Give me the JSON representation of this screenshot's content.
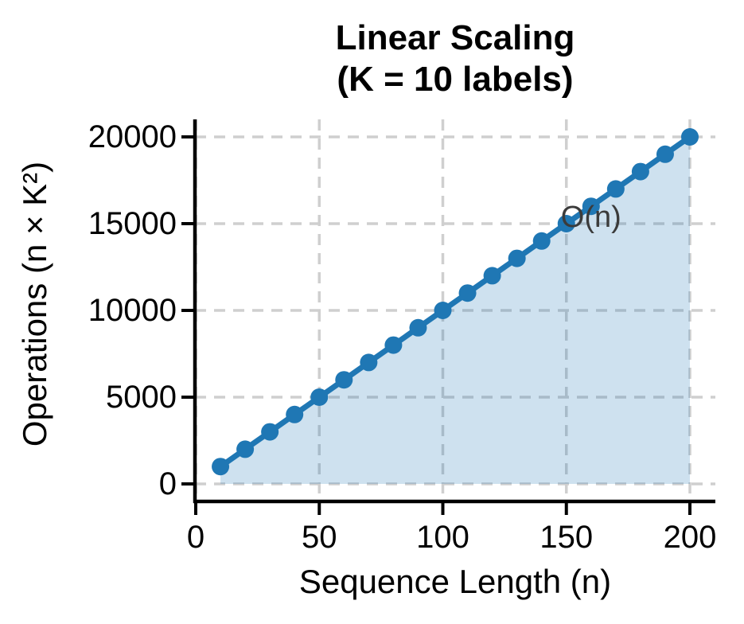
{
  "chart_data": {
    "type": "line",
    "title": "Linear Scaling",
    "subtitle": "(K = 10 labels)",
    "xlabel": "Sequence Length (n)",
    "ylabel": "Operations (n × K²)",
    "x": [
      10,
      20,
      30,
      40,
      50,
      60,
      70,
      80,
      90,
      100,
      110,
      120,
      130,
      140,
      150,
      160,
      170,
      180,
      190,
      200
    ],
    "y": [
      1000,
      2000,
      3000,
      4000,
      5000,
      6000,
      7000,
      8000,
      9000,
      10000,
      11000,
      12000,
      13000,
      14000,
      15000,
      16000,
      17000,
      18000,
      19000,
      20000
    ],
    "series": [
      {
        "name": "operations",
        "values": [
          1000,
          2000,
          3000,
          4000,
          5000,
          6000,
          7000,
          8000,
          9000,
          10000,
          11000,
          12000,
          13000,
          14000,
          15000,
          16000,
          17000,
          18000,
          19000,
          20000
        ]
      }
    ],
    "xticks": [
      0,
      50,
      100,
      150,
      200
    ],
    "yticks": [
      0,
      5000,
      10000,
      15000,
      20000
    ],
    "xlim": [
      0,
      210
    ],
    "ylim": [
      0,
      21000
    ],
    "grid": true,
    "grid_style": "dashed",
    "legend_position": "none",
    "area_fill": true,
    "annotation": {
      "text": "O(n)",
      "x": 160,
      "y": 15500
    },
    "colors": {
      "line": "#1f77b4",
      "marker": "#1f77b4",
      "fill": "rgba(31,119,180,0.22)",
      "grid": "#cfcfcf",
      "axis": "#000000",
      "annotation": "#3b3b3b"
    }
  }
}
